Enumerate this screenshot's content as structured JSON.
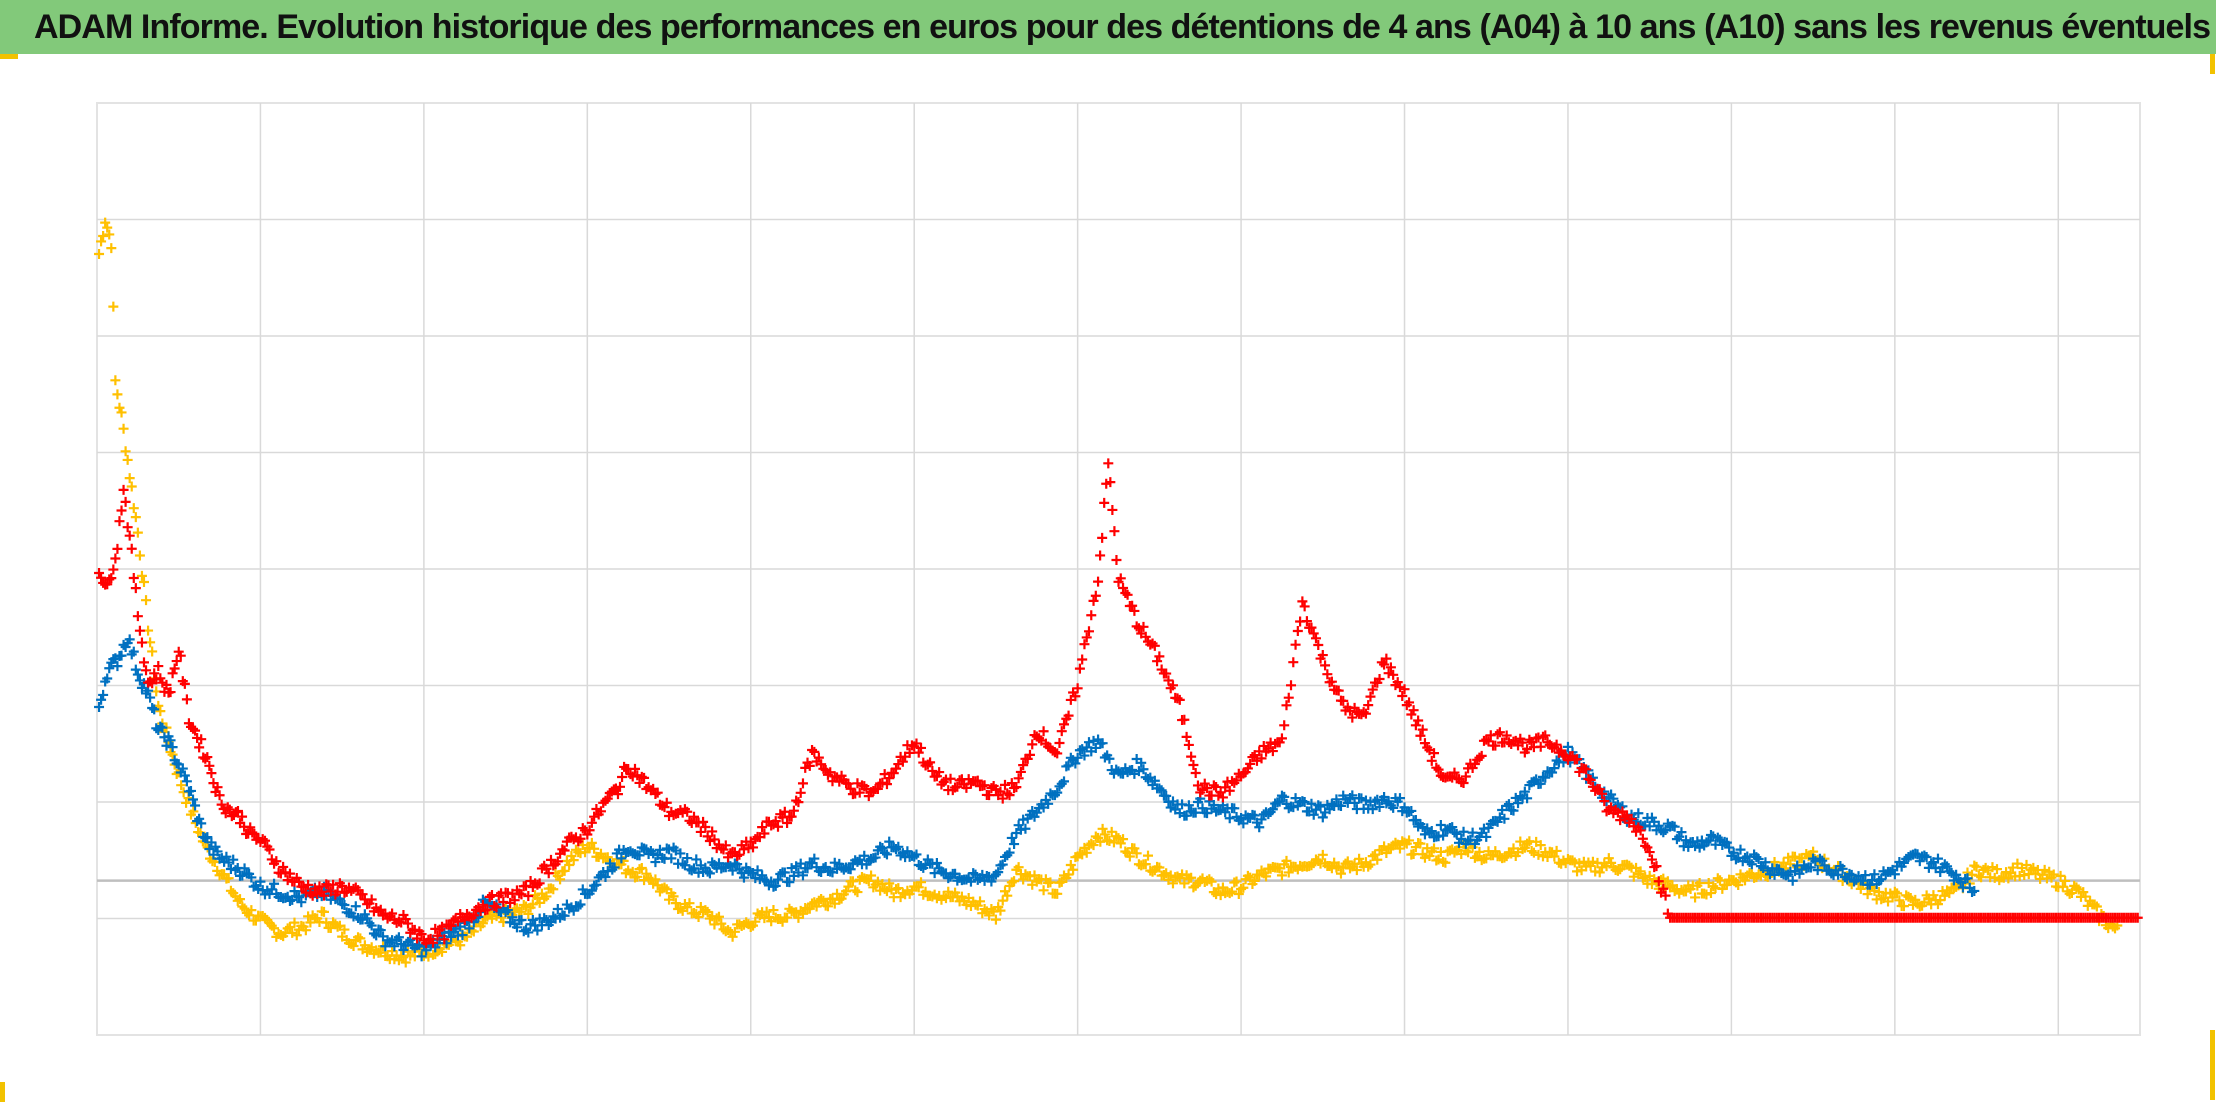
{
  "title": "ADAM Informe. Evolution historique des performances en euros pour des détentions de 4 ans (A04) à 10 ans (A10) sans les revenus éventuels",
  "colors": {
    "title_band": "#82c97a",
    "corner_marks": "#f2c200",
    "grid": "#d9d9d9",
    "zero_line": "#bfbfbf",
    "frame": "#e3e3e3"
  },
  "chart_data": {
    "type": "scatter",
    "marker": "plus",
    "xlabel": "",
    "ylabel": "",
    "x_tick_labels": [],
    "y_tick_labels": [],
    "xlim": [
      0,
      100
    ],
    "ylim": [
      -1.33,
      6.7
    ],
    "grid": true,
    "legend": "none",
    "zero_line": 0,
    "series": [
      {
        "color": "#ffc000",
        "points": [
          [
            0.1,
            5.4
          ],
          [
            0.4,
            5.7
          ],
          [
            0.7,
            5.5
          ],
          [
            0.9,
            4.3
          ],
          [
            1.2,
            4.0
          ],
          [
            1.6,
            3.5
          ],
          [
            2.0,
            3.0
          ],
          [
            2.5,
            2.2
          ],
          [
            3.0,
            1.5
          ],
          [
            3.5,
            1.2
          ],
          [
            4.0,
            0.9
          ],
          [
            4.6,
            0.6
          ],
          [
            5.3,
            0.3
          ],
          [
            6.0,
            0.1
          ],
          [
            7.0,
            -0.2
          ],
          [
            8.0,
            -0.35
          ],
          [
            9.0,
            -0.45
          ],
          [
            10.0,
            -0.4
          ],
          [
            11.0,
            -0.3
          ],
          [
            12.0,
            -0.45
          ],
          [
            13.0,
            -0.55
          ],
          [
            14.0,
            -0.6
          ],
          [
            15.0,
            -0.65
          ],
          [
            16.0,
            -0.62
          ],
          [
            17.0,
            -0.55
          ],
          [
            18.0,
            -0.5
          ],
          [
            19.0,
            -0.35
          ],
          [
            20.0,
            -0.3
          ],
          [
            21.0,
            -0.25
          ],
          [
            22.0,
            -0.1
          ],
          [
            23.0,
            0.15
          ],
          [
            24.0,
            0.3
          ],
          [
            25.0,
            0.2
          ],
          [
            26.0,
            0.1
          ],
          [
            27.0,
            0.05
          ],
          [
            28.0,
            -0.15
          ],
          [
            29.0,
            -0.25
          ],
          [
            30.0,
            -0.3
          ],
          [
            31.0,
            -0.45
          ],
          [
            32.0,
            -0.35
          ],
          [
            33.0,
            -0.3
          ],
          [
            34.0,
            -0.3
          ],
          [
            35.0,
            -0.2
          ],
          [
            36.0,
            -0.15
          ],
          [
            37.0,
            -0.05
          ],
          [
            38.0,
            0.0
          ],
          [
            39.0,
            -0.1
          ],
          [
            40.0,
            -0.05
          ],
          [
            41.0,
            -0.1
          ],
          [
            42.0,
            -0.15
          ],
          [
            43.0,
            -0.2
          ],
          [
            44.0,
            -0.3
          ],
          [
            45.0,
            0.1
          ],
          [
            46.0,
            0.0
          ],
          [
            47.0,
            -0.1
          ],
          [
            48.0,
            0.2
          ],
          [
            49.0,
            0.4
          ],
          [
            50.0,
            0.35
          ],
          [
            51.0,
            0.2
          ],
          [
            52.0,
            0.1
          ],
          [
            53.0,
            0.0
          ],
          [
            54.0,
            0.0
          ],
          [
            55.0,
            -0.1
          ],
          [
            56.0,
            -0.05
          ],
          [
            57.0,
            0.05
          ],
          [
            58.0,
            0.1
          ],
          [
            59.0,
            0.15
          ],
          [
            60.0,
            0.2
          ],
          [
            61.0,
            0.1
          ],
          [
            62.0,
            0.15
          ],
          [
            63.0,
            0.25
          ],
          [
            64.0,
            0.3
          ],
          [
            65.0,
            0.25
          ],
          [
            66.0,
            0.2
          ],
          [
            67.0,
            0.3
          ],
          [
            68.0,
            0.2
          ],
          [
            69.0,
            0.25
          ],
          [
            70.0,
            0.3
          ],
          [
            71.0,
            0.25
          ],
          [
            72.0,
            0.15
          ],
          [
            73.0,
            0.1
          ],
          [
            74.0,
            0.15
          ],
          [
            75.0,
            0.1
          ],
          [
            76.0,
            0.0
          ],
          [
            77.0,
            -0.05
          ],
          [
            78.0,
            -0.1
          ],
          [
            79.0,
            -0.05
          ],
          [
            80.0,
            0.0
          ],
          [
            81.0,
            0.05
          ],
          [
            82.0,
            0.1
          ],
          [
            83.0,
            0.15
          ],
          [
            84.0,
            0.2
          ],
          [
            85.0,
            0.1
          ],
          [
            86.0,
            0.0
          ],
          [
            87.0,
            -0.1
          ],
          [
            88.0,
            -0.15
          ],
          [
            89.0,
            -0.2
          ],
          [
            90.0,
            -0.15
          ],
          [
            91.0,
            -0.1
          ],
          [
            92.0,
            0.1
          ],
          [
            93.0,
            0.05
          ],
          [
            94.0,
            0.1
          ],
          [
            95.0,
            0.05
          ],
          [
            96.0,
            0.0
          ],
          [
            97.0,
            -0.1
          ],
          [
            98.0,
            -0.3
          ],
          [
            99.0,
            -0.45
          ]
        ]
      },
      {
        "color": "#0070c0",
        "points": [
          [
            0.1,
            1.5
          ],
          [
            0.5,
            1.8
          ],
          [
            1.0,
            1.9
          ],
          [
            1.5,
            2.1
          ],
          [
            2.0,
            1.8
          ],
          [
            2.5,
            1.6
          ],
          [
            3.0,
            1.3
          ],
          [
            3.5,
            1.2
          ],
          [
            4.0,
            1.0
          ],
          [
            4.5,
            0.8
          ],
          [
            5.0,
            0.5
          ],
          [
            5.5,
            0.3
          ],
          [
            6.0,
            0.2
          ],
          [
            7.0,
            0.1
          ],
          [
            8.0,
            -0.05
          ],
          [
            9.0,
            -0.1
          ],
          [
            10.0,
            -0.15
          ],
          [
            11.0,
            -0.1
          ],
          [
            12.0,
            -0.2
          ],
          [
            13.0,
            -0.3
          ],
          [
            14.0,
            -0.5
          ],
          [
            15.0,
            -0.55
          ],
          [
            16.0,
            -0.6
          ],
          [
            17.0,
            -0.5
          ],
          [
            18.0,
            -0.4
          ],
          [
            19.0,
            -0.2
          ],
          [
            20.0,
            -0.3
          ],
          [
            21.0,
            -0.4
          ],
          [
            22.0,
            -0.35
          ],
          [
            23.0,
            -0.25
          ],
          [
            24.0,
            -0.1
          ],
          [
            25.0,
            0.1
          ],
          [
            26.0,
            0.3
          ],
          [
            27.0,
            0.2
          ],
          [
            28.0,
            0.25
          ],
          [
            29.0,
            0.15
          ],
          [
            30.0,
            0.1
          ],
          [
            31.0,
            0.15
          ],
          [
            32.0,
            0.05
          ],
          [
            33.0,
            0.0
          ],
          [
            34.0,
            0.05
          ],
          [
            35.0,
            0.15
          ],
          [
            36.0,
            0.1
          ],
          [
            37.0,
            0.15
          ],
          [
            38.0,
            0.2
          ],
          [
            39.0,
            0.3
          ],
          [
            40.0,
            0.2
          ],
          [
            41.0,
            0.1
          ],
          [
            42.0,
            0.05
          ],
          [
            43.0,
            0.0
          ],
          [
            44.0,
            0.05
          ],
          [
            45.0,
            0.4
          ],
          [
            46.0,
            0.6
          ],
          [
            47.0,
            0.8
          ],
          [
            48.0,
            1.1
          ],
          [
            49.0,
            1.2
          ],
          [
            50.0,
            0.9
          ],
          [
            51.0,
            1.0
          ],
          [
            52.0,
            0.8
          ],
          [
            53.0,
            0.6
          ],
          [
            54.0,
            0.65
          ],
          [
            55.0,
            0.6
          ],
          [
            56.0,
            0.55
          ],
          [
            57.0,
            0.5
          ],
          [
            58.0,
            0.7
          ],
          [
            59.0,
            0.65
          ],
          [
            60.0,
            0.6
          ],
          [
            61.0,
            0.7
          ],
          [
            62.0,
            0.65
          ],
          [
            63.0,
            0.7
          ],
          [
            64.0,
            0.65
          ],
          [
            65.0,
            0.4
          ],
          [
            66.0,
            0.45
          ],
          [
            67.0,
            0.35
          ],
          [
            68.0,
            0.4
          ],
          [
            69.0,
            0.6
          ],
          [
            70.0,
            0.75
          ],
          [
            71.0,
            0.95
          ],
          [
            72.0,
            1.1
          ],
          [
            73.0,
            0.9
          ],
          [
            74.0,
            0.7
          ],
          [
            75.0,
            0.55
          ],
          [
            76.0,
            0.5
          ],
          [
            77.0,
            0.45
          ],
          [
            78.0,
            0.3
          ],
          [
            79.0,
            0.35
          ],
          [
            80.0,
            0.25
          ],
          [
            81.0,
            0.2
          ],
          [
            82.0,
            0.1
          ],
          [
            83.0,
            0.05
          ],
          [
            84.0,
            0.15
          ],
          [
            85.0,
            0.1
          ],
          [
            86.0,
            0.05
          ],
          [
            87.0,
            0.0
          ],
          [
            88.0,
            0.1
          ],
          [
            89.0,
            0.2
          ],
          [
            90.0,
            0.15
          ],
          [
            91.0,
            0.05
          ],
          [
            92.0,
            -0.1
          ]
        ]
      },
      {
        "color": "#ff0000",
        "points": [
          [
            0.1,
            2.7
          ],
          [
            0.5,
            2.5
          ],
          [
            1.0,
            2.9
          ],
          [
            1.3,
            3.4
          ],
          [
            1.7,
            2.8
          ],
          [
            2.0,
            2.3
          ],
          [
            2.5,
            1.7
          ],
          [
            3.0,
            1.8
          ],
          [
            3.5,
            1.6
          ],
          [
            4.0,
            2.0
          ],
          [
            4.5,
            1.4
          ],
          [
            5.0,
            1.2
          ],
          [
            5.5,
            1.0
          ],
          [
            6.0,
            0.7
          ],
          [
            6.5,
            0.6
          ],
          [
            7.0,
            0.55
          ],
          [
            7.5,
            0.4
          ],
          [
            8.0,
            0.35
          ],
          [
            9.0,
            0.1
          ],
          [
            10.0,
            -0.05
          ],
          [
            11.0,
            -0.1
          ],
          [
            12.0,
            -0.05
          ],
          [
            13.0,
            -0.15
          ],
          [
            14.0,
            -0.3
          ],
          [
            15.0,
            -0.35
          ],
          [
            16.0,
            -0.5
          ],
          [
            17.0,
            -0.45
          ],
          [
            18.0,
            -0.3
          ],
          [
            19.0,
            -0.2
          ],
          [
            20.0,
            -0.15
          ],
          [
            21.0,
            -0.1
          ],
          [
            22.0,
            0.1
          ],
          [
            23.0,
            0.3
          ],
          [
            24.0,
            0.45
          ],
          [
            25.0,
            0.7
          ],
          [
            25.5,
            0.8
          ],
          [
            26.0,
            1.0
          ],
          [
            27.0,
            0.8
          ],
          [
            28.0,
            0.6
          ],
          [
            29.0,
            0.55
          ],
          [
            30.0,
            0.4
          ],
          [
            31.0,
            0.2
          ],
          [
            32.0,
            0.3
          ],
          [
            33.0,
            0.5
          ],
          [
            34.0,
            0.55
          ],
          [
            35.0,
            1.1
          ],
          [
            36.0,
            0.9
          ],
          [
            37.0,
            0.8
          ],
          [
            38.0,
            0.75
          ],
          [
            39.0,
            0.95
          ],
          [
            40.0,
            1.2
          ],
          [
            41.0,
            0.9
          ],
          [
            42.0,
            0.8
          ],
          [
            43.0,
            0.85
          ],
          [
            44.0,
            0.75
          ],
          [
            45.0,
            0.8
          ],
          [
            46.0,
            1.3
          ],
          [
            47.0,
            1.1
          ],
          [
            48.0,
            1.7
          ],
          [
            49.0,
            2.6
          ],
          [
            49.5,
            3.6
          ],
          [
            50.0,
            2.6
          ],
          [
            51.0,
            2.2
          ],
          [
            52.0,
            1.9
          ],
          [
            53.0,
            1.5
          ],
          [
            54.0,
            0.8
          ],
          [
            55.0,
            0.75
          ],
          [
            56.0,
            0.9
          ],
          [
            57.0,
            1.1
          ],
          [
            58.0,
            1.2
          ],
          [
            59.0,
            2.4
          ],
          [
            60.0,
            1.9
          ],
          [
            61.0,
            1.5
          ],
          [
            62.0,
            1.4
          ],
          [
            63.0,
            1.9
          ],
          [
            64.0,
            1.6
          ],
          [
            65.0,
            1.2
          ],
          [
            66.0,
            0.85
          ],
          [
            67.0,
            0.9
          ],
          [
            68.0,
            1.2
          ],
          [
            69.0,
            1.25
          ],
          [
            70.0,
            1.15
          ],
          [
            71.0,
            1.2
          ],
          [
            72.0,
            1.1
          ],
          [
            73.0,
            0.9
          ],
          [
            74.0,
            0.6
          ],
          [
            75.0,
            0.55
          ],
          [
            76.0,
            0.3
          ],
          [
            77.0,
            -0.32
          ],
          [
            80.0,
            -0.32
          ],
          [
            85.0,
            -0.32
          ],
          [
            90.0,
            -0.32
          ],
          [
            95.0,
            -0.32
          ],
          [
            100.0,
            -0.32
          ]
        ]
      }
    ]
  }
}
